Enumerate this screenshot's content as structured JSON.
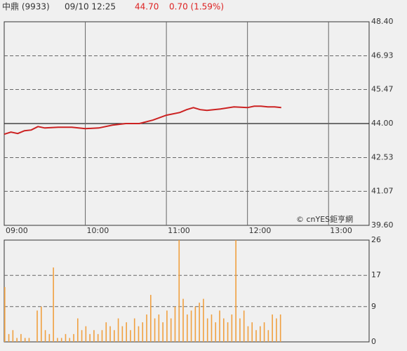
{
  "header": {
    "name": "中鼎 (9933)",
    "time": "09/10 12:25",
    "price": "44.70",
    "change": "0.70 (1.59%)"
  },
  "chart_data": [
    {
      "type": "line",
      "watermark": "© cnYES鉅亨網",
      "color": "#cc2222",
      "x": [
        "09:00",
        "09:05",
        "09:10",
        "09:15",
        "09:20",
        "09:25",
        "09:30",
        "09:40",
        "09:50",
        "10:00",
        "10:10",
        "10:20",
        "10:30",
        "10:40",
        "10:50",
        "11:00",
        "11:10",
        "11:15",
        "11:20",
        "11:25",
        "11:30",
        "11:40",
        "11:50",
        "12:00",
        "12:05",
        "12:10",
        "12:15",
        "12:20",
        "12:25"
      ],
      "values": [
        43.54,
        43.63,
        43.57,
        43.69,
        43.72,
        43.87,
        43.81,
        43.84,
        43.84,
        43.78,
        43.81,
        43.93,
        44.0,
        44.0,
        44.15,
        44.36,
        44.48,
        44.6,
        44.69,
        44.6,
        44.57,
        44.63,
        44.72,
        44.69,
        44.75,
        44.75,
        44.72,
        44.72,
        44.69
      ],
      "xlim": [
        "09:00",
        "13:30"
      ],
      "xticks": [
        "09:00",
        "10:00",
        "11:00",
        "12:00",
        "13:00"
      ],
      "ylim": [
        39.6,
        48.4
      ],
      "yticks": [
        {
          "value": 48.4,
          "label": "48.40"
        },
        {
          "value": 46.93,
          "label": "46.93"
        },
        {
          "value": 45.47,
          "label": "45.47"
        },
        {
          "value": 44,
          "label": "44.00"
        },
        {
          "value": 42.53,
          "label": "42.53"
        },
        {
          "value": 41.07,
          "label": "41.07"
        },
        {
          "value": 39.6,
          "label": "39.60"
        }
      ],
      "baseline": 44,
      "grid": true
    },
    {
      "type": "bar",
      "color": "#f0a040",
      "x": [
        "09:00",
        "09:03",
        "09:06",
        "09:09",
        "09:12",
        "09:15",
        "09:18",
        "09:21",
        "09:24",
        "09:27",
        "09:30",
        "09:33",
        "09:36",
        "09:39",
        "09:42",
        "09:45",
        "09:48",
        "09:51",
        "09:54",
        "09:57",
        "10:00",
        "10:03",
        "10:06",
        "10:09",
        "10:12",
        "10:15",
        "10:18",
        "10:21",
        "10:24",
        "10:27",
        "10:30",
        "10:33",
        "10:36",
        "10:39",
        "10:42",
        "10:45",
        "10:48",
        "10:51",
        "10:54",
        "10:57",
        "11:00",
        "11:03",
        "11:06",
        "11:09",
        "11:12",
        "11:15",
        "11:18",
        "11:21",
        "11:24",
        "11:27",
        "11:30",
        "11:33",
        "11:36",
        "11:39",
        "11:42",
        "11:45",
        "11:48",
        "11:51",
        "11:54",
        "11:57",
        "12:00",
        "12:03",
        "12:06",
        "12:09",
        "12:12",
        "12:15",
        "12:18",
        "12:21",
        "12:24"
      ],
      "values": [
        14,
        2,
        3,
        1,
        2,
        1,
        1,
        0,
        8,
        9,
        3,
        2,
        19,
        1,
        1,
        2,
        1,
        2,
        6,
        3,
        4,
        2,
        3,
        2,
        3,
        5,
        4,
        3,
        6,
        4,
        5,
        3,
        6,
        4,
        5,
        7,
        12,
        6,
        7,
        5,
        8,
        6,
        9,
        26,
        11,
        7,
        8,
        9,
        10,
        11,
        6,
        7,
        5,
        8,
        6,
        5,
        7,
        26,
        6,
        8,
        4,
        5,
        3,
        4,
        5,
        3,
        7,
        6,
        7
      ],
      "xlim": [
        "09:00",
        "13:30"
      ],
      "ylim": [
        0,
        26
      ],
      "yticks": [
        0,
        9,
        17,
        26
      ],
      "grid": true
    }
  ]
}
